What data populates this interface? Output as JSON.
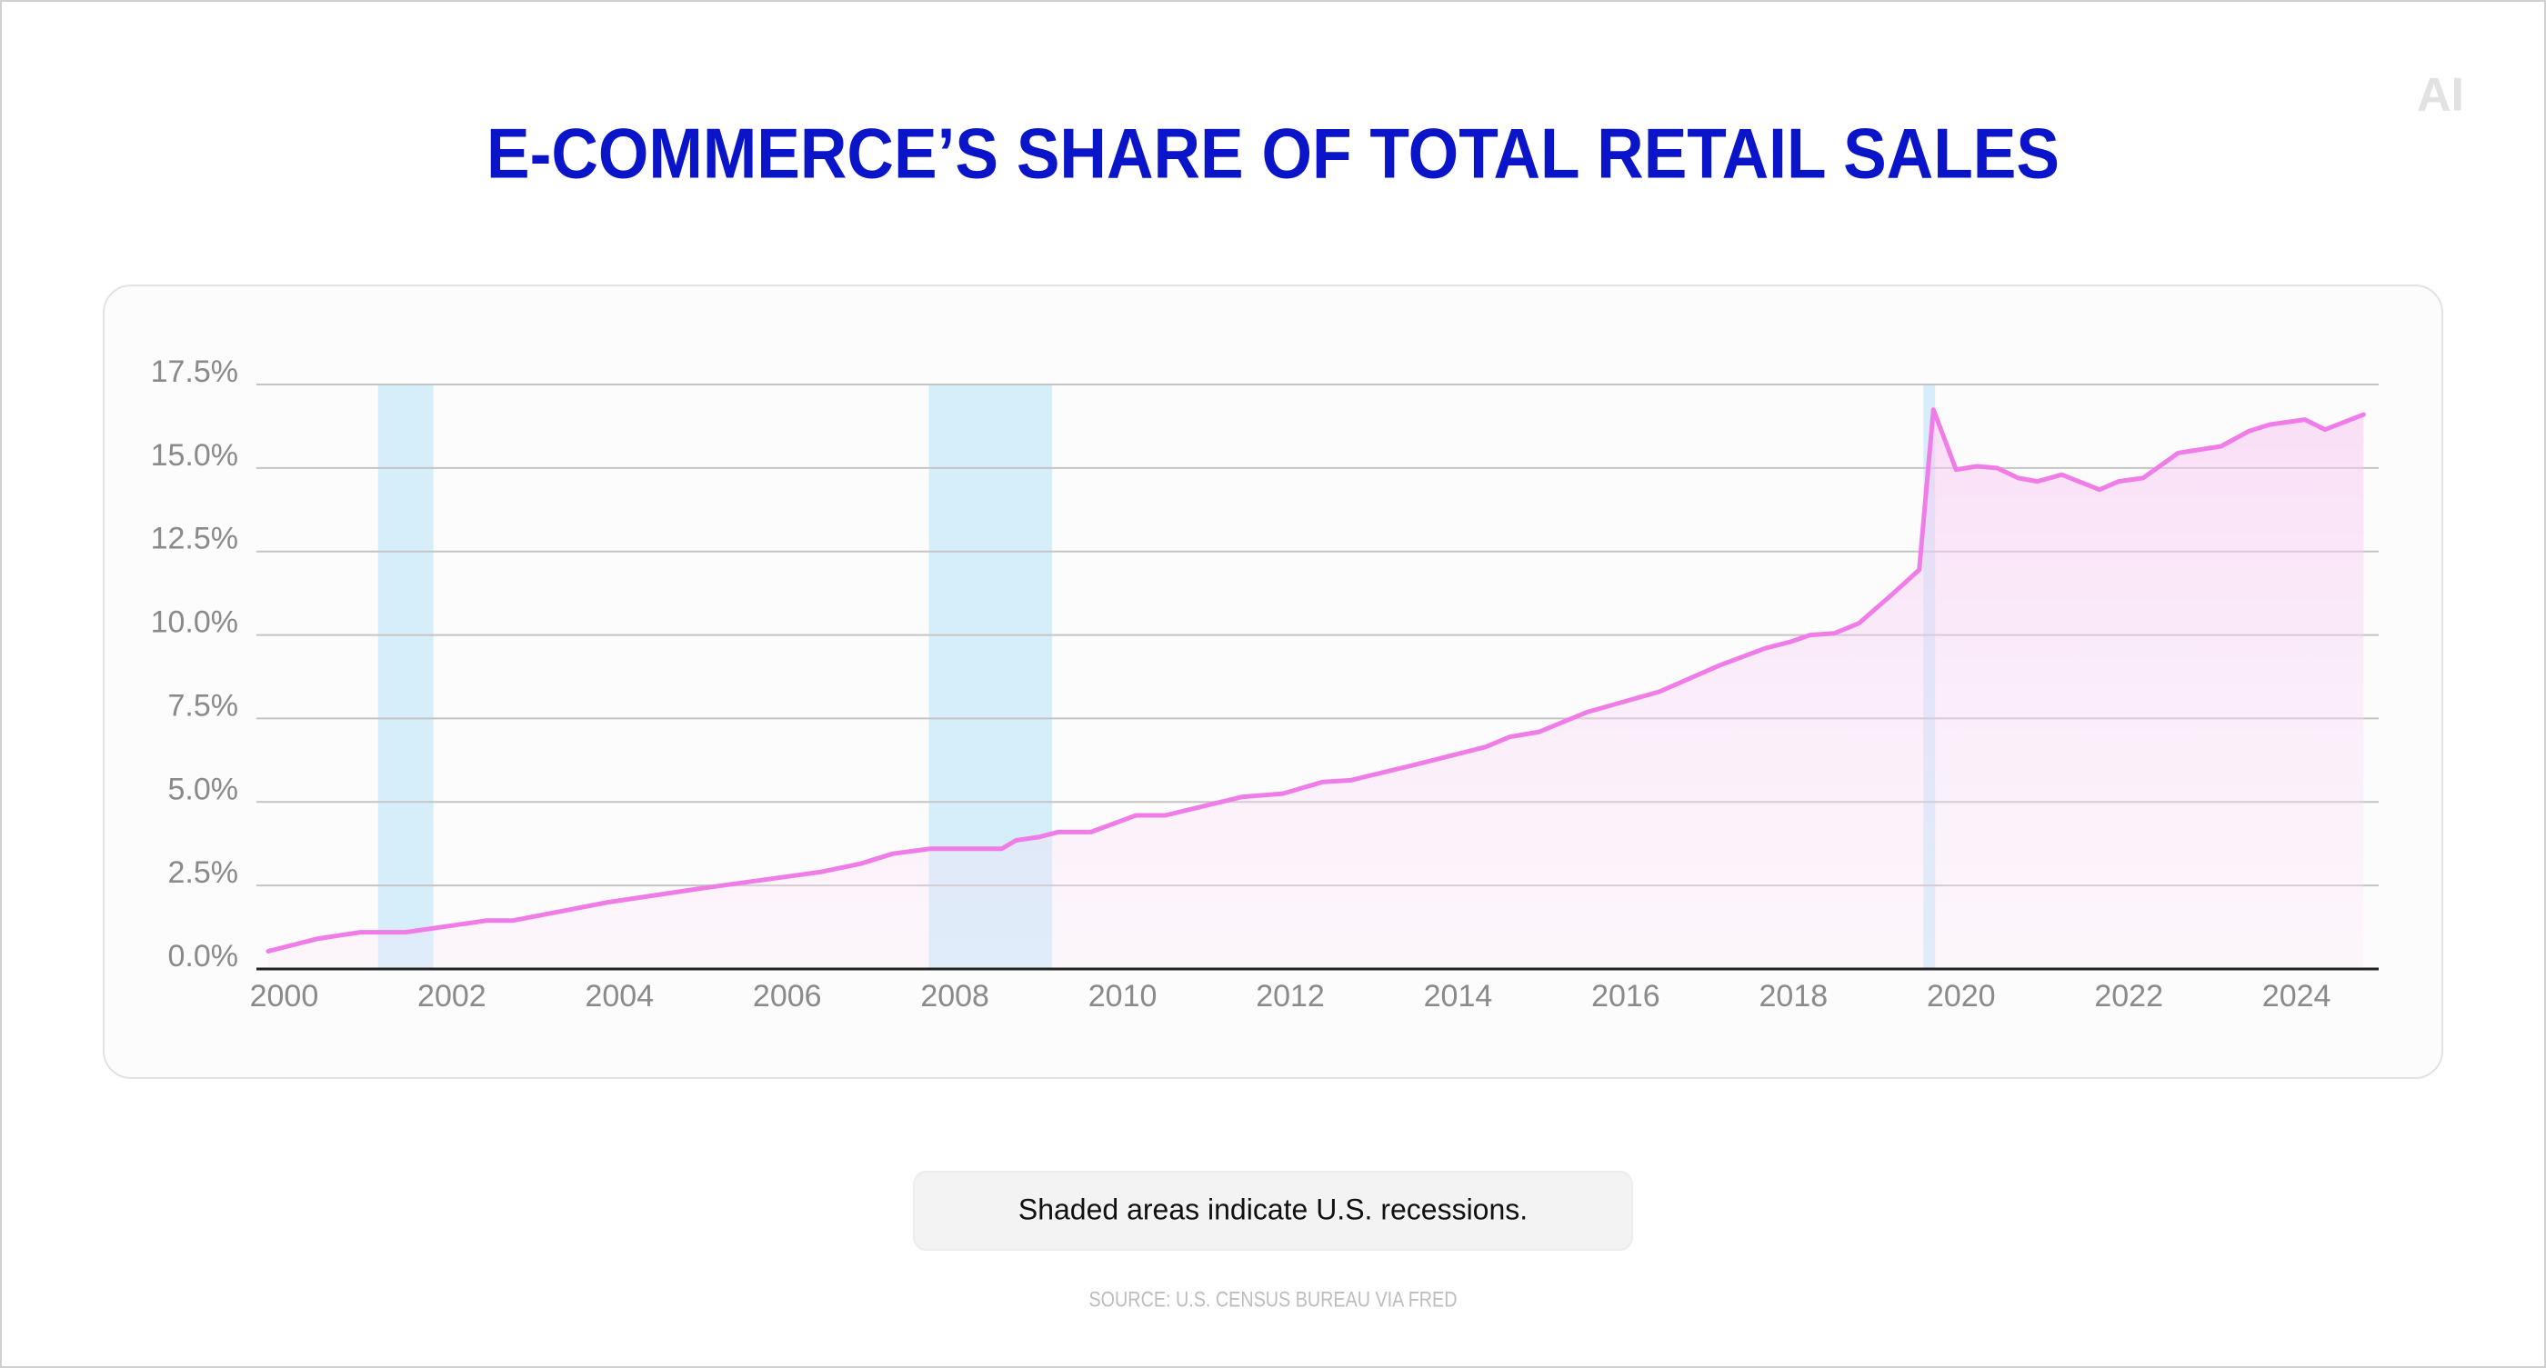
{
  "chart_data": {
    "type": "line",
    "title": "E-COMMERCE’S SHARE OF TOTAL RETAIL SALES",
    "brand": "AI",
    "note": "Shaded areas indicate U.S. recessions.",
    "source": "SOURCE: U.S. CENSUS BUREAU VIA FRED",
    "color": "#f07ce8",
    "recession_color": "#d6eefa",
    "grid": true,
    "x": [
      1999.81,
      2000.39,
      2000.91,
      2001.45,
      2002.42,
      2002.73,
      2003.87,
      2004.94,
      2006.39,
      2006.87,
      2007.26,
      2007.71,
      2008.56,
      2008.73,
      2009.0,
      2009.23,
      2009.62,
      2010.16,
      2010.51,
      2011.42,
      2011.91,
      2012.39,
      2012.72,
      2013.46,
      2014.33,
      2014.62,
      2014.97,
      2015.55,
      2016.4,
      2017.13,
      2017.66,
      2017.97,
      2018.2,
      2018.49,
      2018.78,
      2019.17,
      2019.5,
      2019.67,
      2019.94,
      2020.19,
      2020.43,
      2020.68,
      2020.91,
      2021.2,
      2021.65,
      2021.88,
      2022.17,
      2022.59,
      2023.1,
      2023.43,
      2023.68,
      2024.1,
      2024.34,
      2024.8
    ],
    "values": [
      0.53,
      0.9,
      1.1,
      1.1,
      1.45,
      1.45,
      2.0,
      2.4,
      2.9,
      3.15,
      3.45,
      3.6,
      3.6,
      3.85,
      3.95,
      4.1,
      4.1,
      4.6,
      4.6,
      5.15,
      5.25,
      5.6,
      5.65,
      6.1,
      6.65,
      6.95,
      7.1,
      7.7,
      8.3,
      9.1,
      9.6,
      9.8,
      10.0,
      10.05,
      10.35,
      11.2,
      11.95,
      16.75,
      14.95,
      15.05,
      15.0,
      14.7,
      14.6,
      14.8,
      14.35,
      14.6,
      14.7,
      15.45,
      15.65,
      16.1,
      16.3,
      16.45,
      16.15,
      16.6
    ],
    "recessions": [
      [
        2001.12,
        2001.78
      ],
      [
        2007.69,
        2009.16
      ],
      [
        2019.55,
        2019.69
      ]
    ],
    "xlim": [
      1999.67,
      2024.98
    ],
    "xticks": [
      2000,
      2002,
      2004,
      2006,
      2008,
      2010,
      2012,
      2014,
      2016,
      2018,
      2020,
      2022,
      2024
    ],
    "ylim": [
      0,
      17.5
    ],
    "yticks": [
      {
        "value": 0,
        "label": "0.0%"
      },
      {
        "value": 2.5,
        "label": "2.5%"
      },
      {
        "value": 5,
        "label": "5.0%"
      },
      {
        "value": 7.5,
        "label": "7.5%"
      },
      {
        "value": 10,
        "label": "10.0%"
      },
      {
        "value": 12.5,
        "label": "12.5%"
      },
      {
        "value": 15,
        "label": "15.0%"
      },
      {
        "value": 17.5,
        "label": "17.5%"
      }
    ]
  }
}
